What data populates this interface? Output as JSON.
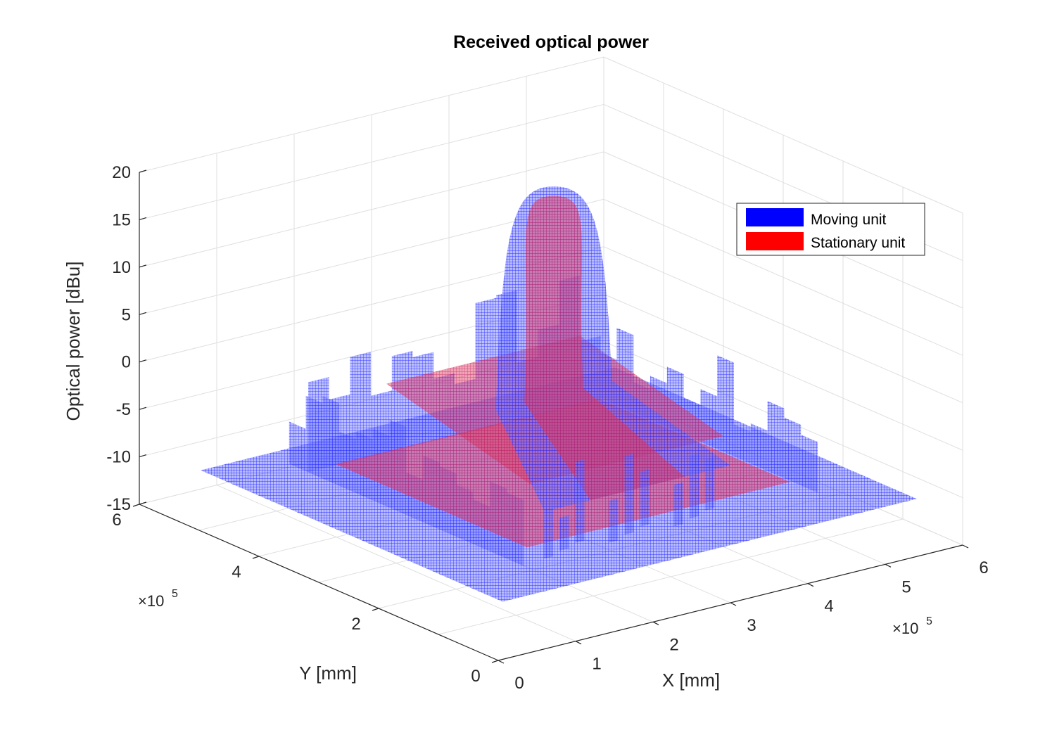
{
  "chart_data": {
    "type": "surface",
    "title": "Received optical power",
    "xlabel": "X [mm]",
    "ylabel": "Y [mm]",
    "zlabel": "Optical power [dBu]",
    "x_exponent": "×10^5",
    "y_exponent": "×10^5",
    "x_ticks": [
      "0",
      "1",
      "2",
      "3",
      "4",
      "5",
      "6"
    ],
    "y_ticks": [
      "0",
      "2",
      "4",
      "6"
    ],
    "z_ticks": [
      "-15",
      "-10",
      "-5",
      "0",
      "5",
      "10",
      "15",
      "20"
    ],
    "xlim": [
      0,
      6
    ],
    "ylim": [
      0,
      6
    ],
    "zlim": [
      -15,
      20
    ],
    "grid": true,
    "legend_position": "top-right",
    "colors": {
      "moving": "#0000ff",
      "stationary": "#ff0000"
    },
    "series": [
      {
        "name": "Moving unit",
        "floor_level": -10,
        "peak": {
          "x": 3.0,
          "y": 3.0,
          "z": 18
        },
        "side_walls_level": [
          -5,
          3
        ]
      },
      {
        "name": "Stationary unit",
        "floor_level": -10,
        "peak": {
          "x": 3.0,
          "y": 3.0,
          "z": 17
        },
        "plateau_level": -1
      }
    ]
  }
}
